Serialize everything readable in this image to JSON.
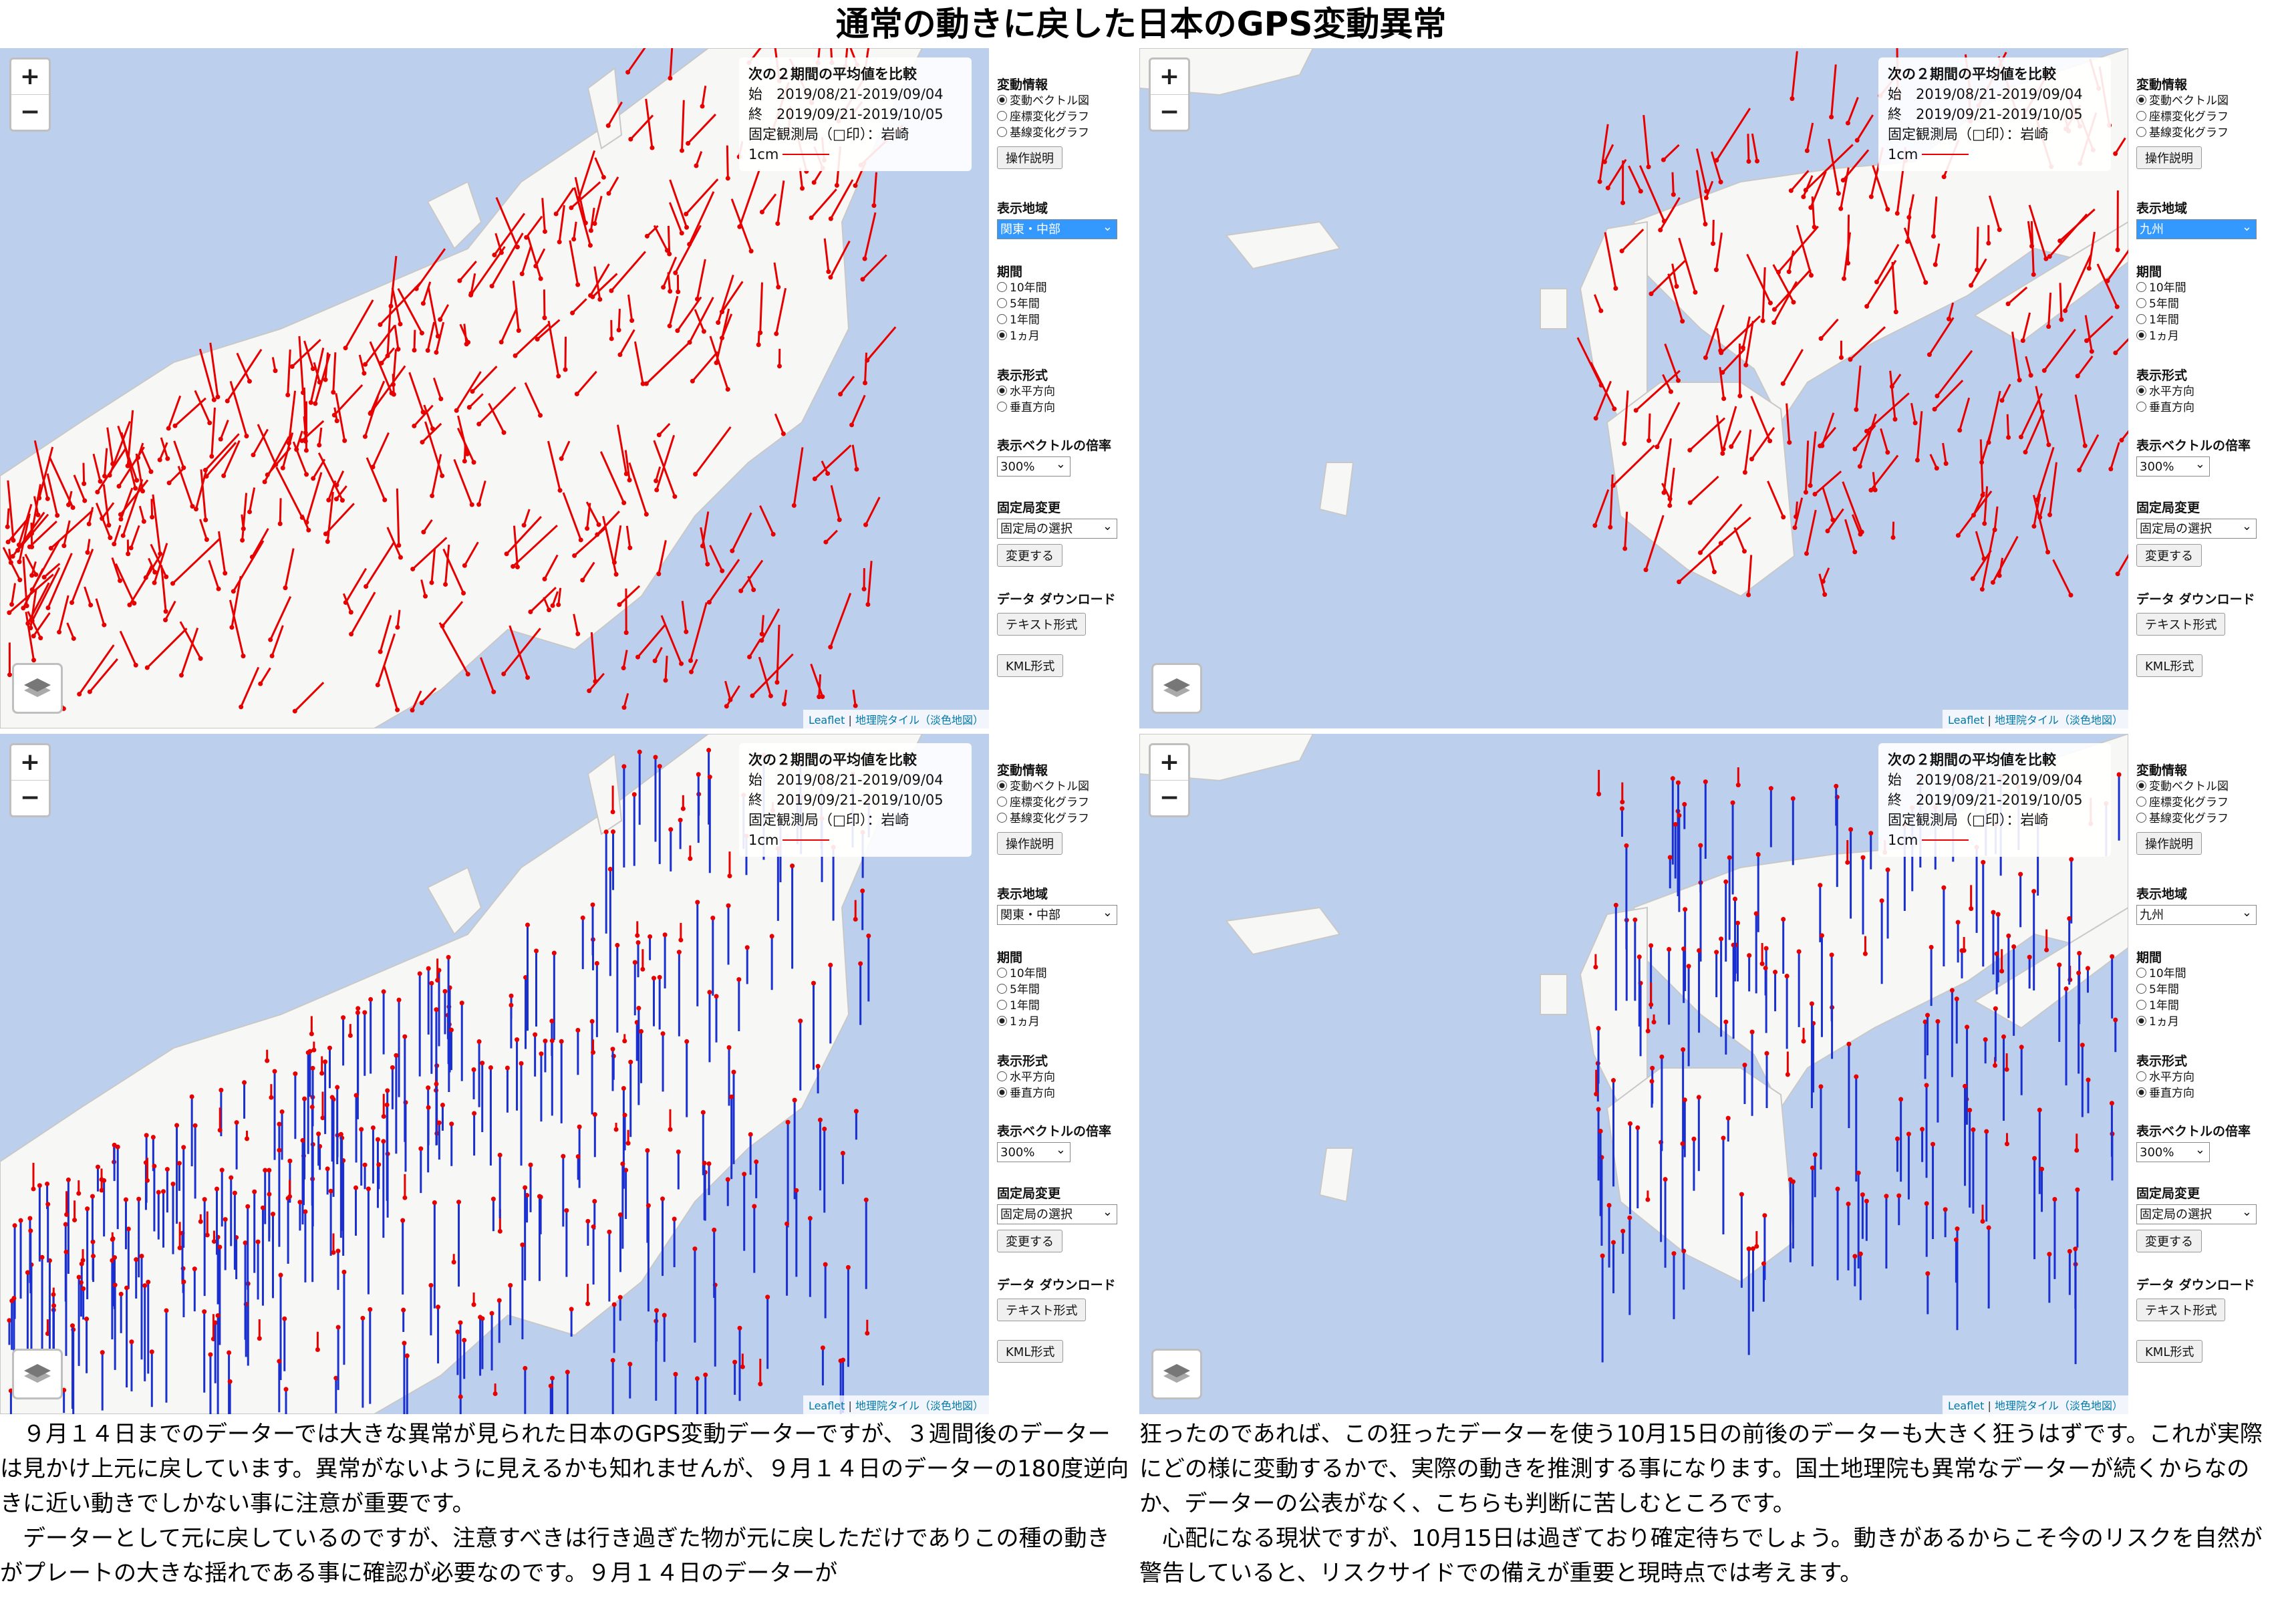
{
  "title": "通常の動きに戻した日本のGPS変動異常",
  "panels": [
    {
      "region": "関東・中部",
      "format_on": 0,
      "region_hl": true
    },
    {
      "region": "九州",
      "format_on": 0,
      "region_hl": true
    },
    {
      "region": "関東・中部",
      "format_on": 1,
      "region_hl": false
    },
    {
      "region": "九州",
      "format_on": 1,
      "region_hl": false
    }
  ],
  "info": {
    "heading": "次の２期間の平均値を比較",
    "start": "始　2019/08/21-2019/09/04",
    "end": "終　2019/09/21-2019/10/05",
    "fixed": "固定観測局（□印）：岩崎",
    "scale": "1cm"
  },
  "zoom": {
    "plus": "+",
    "minus": "−"
  },
  "attribution": {
    "leaflet": "Leaflet",
    "tiles": "地理院タイル（淡色地図）"
  },
  "sidebar": {
    "info_label": "変動情報",
    "info_options": [
      "変動ベクトル図",
      "座標変化グラフ",
      "基線変化グラフ"
    ],
    "help_button": "操作説明",
    "region_label": "表示地域",
    "period_label": "期間",
    "period_options": [
      "10年間",
      "5年間",
      "1年間",
      "1ヵ月"
    ],
    "format_label": "表示形式",
    "format_options": [
      "水平方向",
      "垂直方向"
    ],
    "scale_label": "表示ベクトルの倍率",
    "scale_value": "300%",
    "fixed_label": "固定局変更",
    "fixed_value": "固定局の選択",
    "change_button": "変更する",
    "download_label": "データ ダウンロード",
    "text_button": "テキスト形式",
    "kml_button": "KML形式"
  },
  "body_left": "　９月１４日までのデーターでは大きな異常が見られた日本のGPS変動データーですが、３週間後のデーターは見かけ上元に戻しています。異常がないように見えるかも知れませんが、９月１４日のデーターの180度逆向きに近い動きでしかない事に注意が重要です。\n　データーとして元に戻しているのですが、注意すべきは行き過ぎた物が元に戻しただけでありこの種の動きがプレートの大きな揺れである事に確認が必要なのです。９月１４日のデーターが",
  "body_right": "狂ったのであれば、この狂ったデーターを使う10月15日の前後のデーターも大きく狂うはずです。これが実際にどの様に変動するかで、実際の動きを推測する事になります。国土地理院も異常なデーターが続くからなのか、データーの公表がなく、こちらも判断に苦しむところです。\n　心配になる現状ですが、10月15日は過ぎており確定待ちでしょう。動きがあるからこそ今のリスクを自然が警告していると、リスクサイドでの備えが重要と現時点では考えます。",
  "colors": {
    "horizontal": "#e60000",
    "up": "#e60000",
    "down": "#1a2fd0",
    "land": "#f7f7f5",
    "sea": "#bcd0ee"
  }
}
